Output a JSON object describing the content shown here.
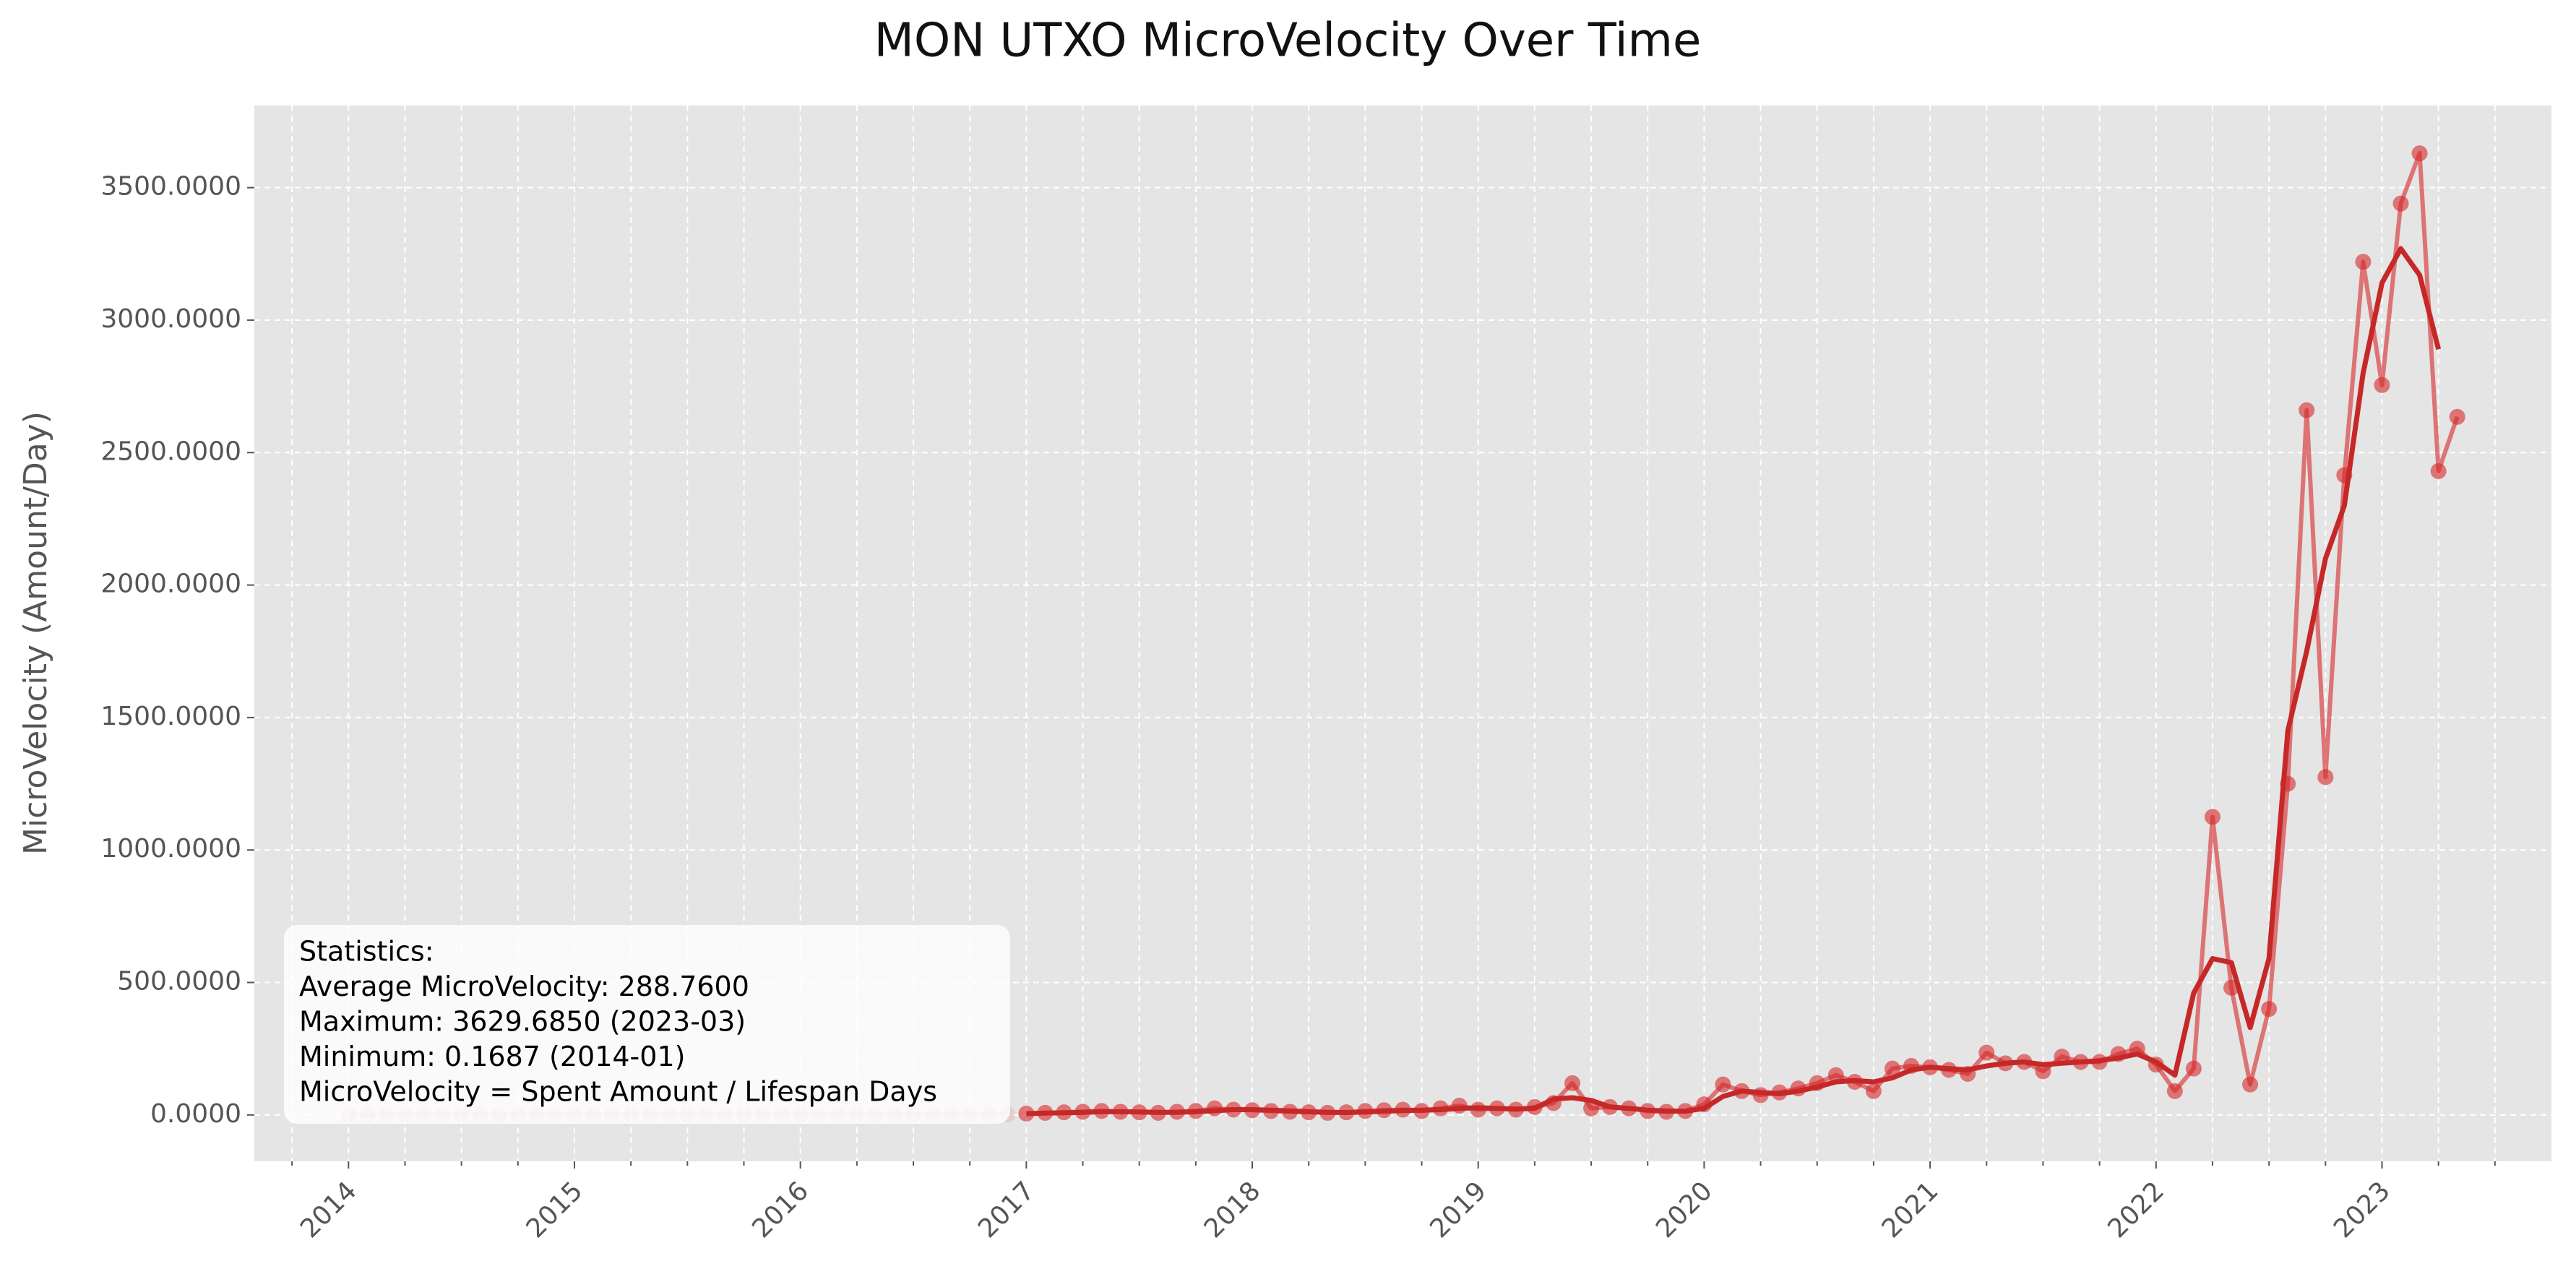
{
  "chart_data": {
    "type": "line",
    "title": "MON UTXO MicroVelocity Over Time",
    "y_label": "MicroVelocity (Amount/Day)",
    "x": [
      "2014-01",
      "2014-02",
      "2014-03",
      "2014-04",
      "2014-05",
      "2014-06",
      "2014-07",
      "2014-08",
      "2014-09",
      "2014-10",
      "2014-11",
      "2014-12",
      "2015-01",
      "2015-02",
      "2015-03",
      "2015-04",
      "2015-05",
      "2015-06",
      "2015-07",
      "2015-08",
      "2015-09",
      "2015-10",
      "2015-11",
      "2015-12",
      "2016-01",
      "2016-02",
      "2016-03",
      "2016-04",
      "2016-05",
      "2016-06",
      "2016-07",
      "2016-08",
      "2016-09",
      "2016-10",
      "2016-11",
      "2016-12",
      "2017-01",
      "2017-02",
      "2017-03",
      "2017-04",
      "2017-05",
      "2017-06",
      "2017-07",
      "2017-08",
      "2017-09",
      "2017-10",
      "2017-11",
      "2017-12",
      "2018-01",
      "2018-02",
      "2018-03",
      "2018-04",
      "2018-05",
      "2018-06",
      "2018-07",
      "2018-08",
      "2018-09",
      "2018-10",
      "2018-11",
      "2018-12",
      "2019-01",
      "2019-02",
      "2019-03",
      "2019-04",
      "2019-05",
      "2019-06",
      "2019-07",
      "2019-08",
      "2019-09",
      "2019-10",
      "2019-11",
      "2019-12",
      "2020-01",
      "2020-02",
      "2020-03",
      "2020-04",
      "2020-05",
      "2020-06",
      "2020-07",
      "2020-08",
      "2020-09",
      "2020-10",
      "2020-11",
      "2020-12",
      "2021-01",
      "2021-02",
      "2021-03",
      "2021-04",
      "2021-05",
      "2021-06",
      "2021-07",
      "2021-08",
      "2021-09",
      "2021-10",
      "2021-11",
      "2021-12",
      "2022-01",
      "2022-02",
      "2022-03",
      "2022-04",
      "2022-05",
      "2022-06",
      "2022-07",
      "2022-08",
      "2022-09",
      "2022-10",
      "2022-11",
      "2022-12",
      "2023-01",
      "2023-02",
      "2023-03",
      "2023-04",
      "2023-05"
    ],
    "series": [
      {
        "color": "#d62728",
        "opacity": 0.12,
        "markers": true,
        "values": [
          0.1687,
          0.5,
          0.8,
          1.2,
          0.9,
          1.5,
          2,
          1.1,
          0.7,
          1.3,
          2.2,
          1.8,
          1.5,
          1.0,
          0.9,
          1.6,
          2.1,
          1.4,
          1.2,
          0.8,
          1.7,
          2.4,
          1.9,
          1.3,
          1.1,
          1.6,
          2.0,
          1.5,
          1.2,
          1.8,
          2.3,
          1.7,
          1.4,
          2.0,
          2.6,
          2.2,
          null,
          null,
          null,
          null,
          null,
          null,
          null,
          null,
          null,
          null,
          null,
          null,
          null,
          null,
          null,
          null,
          null,
          null,
          null,
          null,
          null,
          null,
          null,
          null,
          null,
          null,
          null,
          null,
          null,
          null,
          null,
          null,
          null,
          null,
          null,
          null,
          null,
          null,
          null,
          null,
          null,
          null,
          null,
          null,
          null,
          null,
          null,
          null,
          null,
          null,
          null,
          null,
          null,
          null,
          null,
          null,
          null,
          null,
          null,
          null,
          null,
          null,
          null,
          null,
          null,
          null,
          null,
          null,
          null,
          null,
          null,
          null,
          null,
          null,
          null,
          null,
          null
        ]
      },
      {
        "color": "#d62728",
        "opacity": 0.6,
        "markers": true,
        "values": [
          null,
          null,
          null,
          null,
          null,
          null,
          null,
          null,
          null,
          null,
          null,
          null,
          null,
          null,
          null,
          null,
          null,
          null,
          null,
          null,
          null,
          null,
          null,
          null,
          null,
          null,
          null,
          null,
          null,
          null,
          null,
          null,
          null,
          null,
          null,
          null,
          5,
          8,
          10,
          12,
          15,
          12,
          10,
          8,
          12,
          15,
          25,
          20,
          18,
          15,
          12,
          10,
          8,
          10,
          15,
          18,
          20,
          15,
          25,
          35,
          20,
          25,
          20,
          30,
          45,
          120,
          25,
          30,
          25,
          15,
          12,
          15,
          40,
          115,
          90,
          75,
          85,
          100,
          120,
          150,
          125,
          90,
          175,
          185,
          180,
          170,
          155,
          235,
          195,
          200,
          165,
          220,
          200,
          200,
          230,
          250,
          190,
          90,
          175,
          1125,
          480,
          115,
          400,
          1250,
          2660,
          1275,
          2415,
          3220,
          2755,
          3440,
          3629.685,
          2430,
          2635
        ]
      },
      {
        "color": "#c62828",
        "opacity": 1,
        "markers": false,
        "values": [
          null,
          null,
          null,
          null,
          null,
          null,
          null,
          null,
          null,
          null,
          null,
          null,
          null,
          null,
          null,
          null,
          null,
          null,
          null,
          null,
          null,
          null,
          null,
          null,
          null,
          null,
          null,
          null,
          null,
          null,
          null,
          null,
          null,
          null,
          null,
          null,
          5,
          7,
          8,
          10,
          12,
          12,
          11,
          10,
          10,
          12,
          16,
          20,
          20,
          18,
          15,
          12,
          10,
          9,
          11,
          14,
          17,
          18,
          20,
          25,
          27,
          25,
          22,
          25,
          60,
          65,
          55,
          30,
          25,
          18,
          15,
          14,
          25,
          70,
          90,
          85,
          80,
          90,
          105,
          125,
          130,
          125,
          140,
          170,
          180,
          175,
          170,
          185,
          195,
          200,
          190,
          195,
          200,
          205,
          215,
          230,
          200,
          150,
          460,
          590,
          575,
          330,
          590,
          1450,
          1750,
          2100,
          2300,
          2800,
          3140,
          3270,
          3170,
          2890,
          null
        ]
      }
    ],
    "xlim": [
      "2013-08",
      "2023-10"
    ],
    "xticks": [
      {
        "value": "2014-01",
        "label": "2014"
      },
      {
        "value": "2015-01",
        "label": "2015"
      },
      {
        "value": "2016-01",
        "label": "2016"
      },
      {
        "value": "2017-01",
        "label": "2017"
      },
      {
        "value": "2018-01",
        "label": "2018"
      },
      {
        "value": "2019-01",
        "label": "2019"
      },
      {
        "value": "2020-01",
        "label": "2020"
      },
      {
        "value": "2021-01",
        "label": "2021"
      },
      {
        "value": "2022-01",
        "label": "2022"
      },
      {
        "value": "2023-01",
        "label": "2023"
      }
    ],
    "xminorticks": [
      "2013-10",
      "2014-04",
      "2014-07",
      "2014-10",
      "2015-04",
      "2015-07",
      "2015-10",
      "2016-04",
      "2016-07",
      "2016-10",
      "2017-04",
      "2017-07",
      "2017-10",
      "2018-04",
      "2018-07",
      "2018-10",
      "2019-04",
      "2019-07",
      "2019-10",
      "2020-04",
      "2020-07",
      "2020-10",
      "2021-04",
      "2021-07",
      "2021-10",
      "2022-04",
      "2022-07",
      "2022-10",
      "2023-04",
      "2023-07"
    ],
    "ylim": [
      -175,
      3810
    ],
    "yticks": [
      {
        "value": 0,
        "label": "0.0000"
      },
      {
        "value": 500,
        "label": "500.0000"
      },
      {
        "value": 1000,
        "label": "1000.0000"
      },
      {
        "value": 1500,
        "label": "1500.0000"
      },
      {
        "value": 2000,
        "label": "2000.0000"
      },
      {
        "value": 2500,
        "label": "2500.0000"
      },
      {
        "value": 3000,
        "label": "3000.0000"
      },
      {
        "value": 3500,
        "label": "3500.0000"
      }
    ],
    "grid": true,
    "annotation": [
      "Statistics:",
      "Average MicroVelocity: 288.7600",
      "Maximum: 3629.6850 (2023-03)",
      "Minimum: 0.1687 (2014-01)",
      "MicroVelocity = Spent Amount / Lifespan Days"
    ]
  }
}
